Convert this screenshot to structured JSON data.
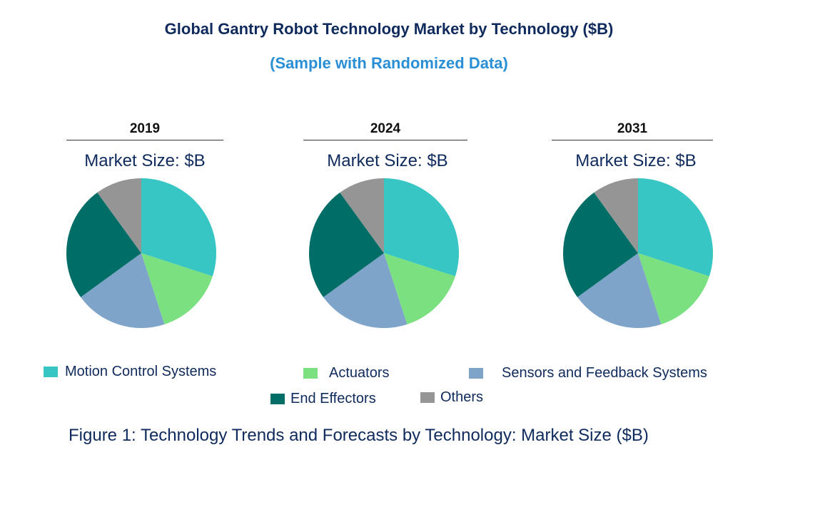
{
  "chart_data": {
    "type": "pie",
    "title": "Global Gantry Robot Technology Market by Technology ($B)",
    "subtitle": "(Sample with Randomized Data)",
    "categories": [
      "Motion Control Systems",
      "Actuators",
      "Sensors and Feedback Systems",
      "End Effectors",
      "Others"
    ],
    "colors": [
      "#37c6c4",
      "#7be07f",
      "#7ea4c9",
      "#006e66",
      "#959595"
    ],
    "legend_position": "bottom",
    "pies": [
      {
        "year": "2019",
        "label": "Market Size: $B",
        "values": [
          30,
          15,
          20,
          25,
          10
        ]
      },
      {
        "year": "2024",
        "label": "Market Size: $B",
        "values": [
          30,
          15,
          20,
          25,
          10
        ]
      },
      {
        "year": "2031",
        "label": "Market Size: $B",
        "values": [
          30,
          15,
          20,
          25,
          10
        ]
      }
    ]
  },
  "caption": "Figure 1: Technology Trends and Forecasts by Technology: Market Size ($B)"
}
